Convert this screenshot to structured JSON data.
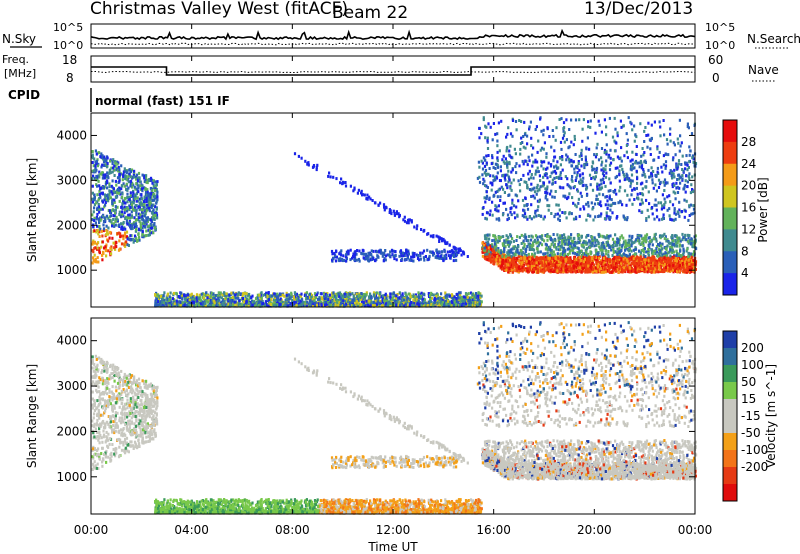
{
  "header": {
    "station": "Christmas Valley West (fitACF)",
    "beam": "Beam 22",
    "date": "13/Dec/2013"
  },
  "panels": {
    "nsky_label": "N.Sky",
    "nsearch_label": "N.Search",
    "freq_label_1": "Freq.",
    "freq_label_2": "[MHz]",
    "nave_label": "Nave",
    "cpid_label": "CPID",
    "cpid_value": "normal (fast) 151 IF"
  },
  "chart_data": [
    {
      "type": "line",
      "name": "noise",
      "left_ticks": [
        "10^5",
        "10^0"
      ],
      "right_ticks": [
        "10^5",
        "10^0"
      ]
    },
    {
      "type": "line",
      "name": "frequency",
      "left_ticks": [
        "18",
        "8"
      ],
      "right_ticks": [
        "60",
        "0"
      ],
      "freq_segments": [
        {
          "from_hour": 0,
          "to_hour": 3.0,
          "value_mhz": 14.5
        },
        {
          "from_hour": 3.0,
          "to_hour": 15.1,
          "value_mhz": 10.5
        },
        {
          "from_hour": 15.1,
          "to_hour": 24,
          "value_mhz": 14.5
        }
      ]
    },
    {
      "type": "heatmap",
      "name": "power",
      "ylabel": "Slant Range [km]",
      "yticks": [
        "1000",
        "2000",
        "3000",
        "4000"
      ],
      "ylim": [
        180,
        4500
      ],
      "colorbar_label": "Power [dB]",
      "colorbar_ticks": [
        "4",
        "8",
        "12",
        "16",
        "20",
        "24",
        "28"
      ],
      "colors": [
        "#1a24e8",
        "#2a5fb8",
        "#3f8a8f",
        "#62b25a",
        "#cfc51f",
        "#f49b18",
        "#ee3d10",
        "#e60c0c"
      ]
    },
    {
      "type": "heatmap",
      "name": "velocity",
      "ylabel": "Slant Range [km]",
      "yticks": [
        "1000",
        "2000",
        "3000",
        "4000"
      ],
      "ylim": [
        180,
        4500
      ],
      "colorbar_label": "Velocity [m s^-1]",
      "colorbar_ticks": [
        "200",
        "100",
        "50",
        "15",
        "-15",
        "-50",
        "-100",
        "-200"
      ],
      "colors": [
        "#1f3fa8",
        "#2f6f9c",
        "#3a9a5a",
        "#79c94a",
        "#c8c8c0",
        "#c8c8c0",
        "#f3a018",
        "#f37418",
        "#e63a14",
        "#e00c0c"
      ]
    }
  ],
  "xaxis": {
    "label": "Time UT",
    "ticks": [
      "00:00",
      "04:00",
      "08:00",
      "12:00",
      "16:00",
      "20:00",
      "00:00"
    ]
  }
}
